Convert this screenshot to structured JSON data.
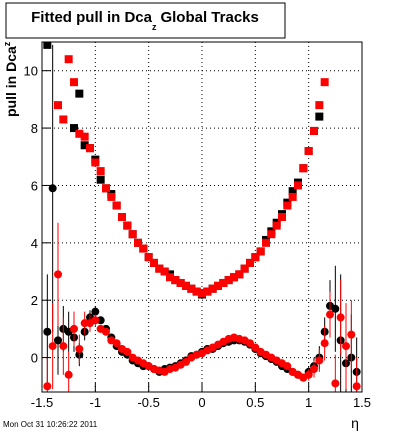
{
  "chart_data": {
    "type": "scatter",
    "title": "Fitted pull in Dca",
    "title_subscript": "z",
    "title_suffix": "Global Tracks",
    "y_label": "pull in Dca",
    "y_label_subscript": "z",
    "x_label": "η",
    "timestamp": "Mon Oct 31 10:26:22 2011",
    "xlim": [
      -1.5,
      1.5
    ],
    "ylim": [
      -1.2,
      11
    ],
    "xticks": [
      -1.5,
      -1,
      -0.5,
      0,
      0.5,
      1,
      1.5
    ],
    "yticks": [
      0,
      2,
      4,
      6,
      8,
      10
    ],
    "grid": true,
    "series": [
      {
        "color": "#000000",
        "marker": "square",
        "x": [
          -1.45,
          -1.2,
          -1.15,
          -1.1,
          -1.05,
          -1.0,
          -0.95,
          -0.9,
          -0.85,
          -0.8,
          -0.75,
          -0.7,
          -0.65,
          -0.6,
          -0.55,
          -0.5,
          -0.45,
          -0.4,
          -0.35,
          -0.3,
          -0.25,
          -0.2,
          -0.15,
          -0.1,
          -0.05,
          0,
          0.05,
          0.1,
          0.15,
          0.2,
          0.25,
          0.3,
          0.35,
          0.4,
          0.45,
          0.5,
          0.55,
          0.6,
          0.65,
          0.7,
          0.75,
          0.8,
          0.85,
          0.9,
          0.95,
          1.0,
          1.05,
          1.1
        ],
        "values": [
          10.9,
          8.0,
          9.2,
          7.4,
          7.3,
          6.9,
          6.2,
          5.9,
          5.7,
          5.3,
          4.9,
          4.6,
          4.3,
          4.0,
          3.8,
          3.5,
          3.3,
          3.1,
          3.0,
          2.9,
          2.7,
          2.6,
          2.5,
          2.4,
          2.3,
          2.2,
          2.3,
          2.4,
          2.5,
          2.6,
          2.7,
          2.8,
          2.9,
          3.1,
          3.3,
          3.5,
          3.7,
          4.1,
          4.4,
          4.7,
          5.0,
          5.4,
          5.8,
          6.1,
          6.6,
          7.2,
          7.9,
          8.4
        ]
      },
      {
        "color": "#ff0000",
        "marker": "square",
        "x": [
          -1.35,
          -1.3,
          -1.25,
          -1.2,
          -1.15,
          -1.1,
          -1.05,
          -1.0,
          -0.95,
          -0.9,
          -0.85,
          -0.8,
          -0.75,
          -0.7,
          -0.65,
          -0.6,
          -0.55,
          -0.5,
          -0.45,
          -0.4,
          -0.35,
          -0.3,
          -0.25,
          -0.2,
          -0.15,
          -0.1,
          -0.05,
          0,
          0.05,
          0.1,
          0.15,
          0.2,
          0.25,
          0.3,
          0.35,
          0.4,
          0.45,
          0.5,
          0.55,
          0.6,
          0.65,
          0.7,
          0.75,
          0.8,
          0.85,
          0.9,
          0.95,
          1.0,
          1.05,
          1.1,
          1.15
        ],
        "values": [
          8.8,
          8.3,
          10.4,
          9.6,
          7.8,
          7.7,
          7.3,
          6.8,
          6.5,
          5.9,
          5.6,
          5.3,
          4.9,
          4.6,
          4.3,
          4.0,
          3.8,
          3.5,
          3.3,
          3.1,
          3.0,
          2.8,
          2.7,
          2.6,
          2.5,
          2.4,
          2.3,
          2.25,
          2.3,
          2.4,
          2.5,
          2.6,
          2.7,
          2.8,
          2.9,
          3.1,
          3.3,
          3.5,
          3.7,
          4.0,
          4.3,
          4.6,
          4.9,
          5.3,
          5.6,
          6.0,
          6.6,
          7.2,
          7.9,
          8.8,
          9.6
        ]
      },
      {
        "color": "#000000",
        "marker": "circle",
        "x": [
          -1.45,
          -1.4,
          -1.35,
          -1.3,
          -1.25,
          -1.2,
          -1.15,
          -1.1,
          -1.05,
          -1.0,
          -0.95,
          -0.9,
          -0.85,
          -0.8,
          -0.75,
          -0.7,
          -0.65,
          -0.6,
          -0.55,
          -0.5,
          -0.45,
          -0.4,
          -0.35,
          -0.3,
          -0.25,
          -0.2,
          -0.15,
          -0.1,
          -0.05,
          0,
          0.05,
          0.1,
          0.15,
          0.2,
          0.25,
          0.3,
          0.35,
          0.4,
          0.45,
          0.5,
          0.55,
          0.6,
          0.65,
          0.7,
          0.75,
          0.8,
          0.85,
          0.9,
          0.95,
          1.0,
          1.05,
          1.1,
          1.15,
          1.2,
          1.25,
          1.3,
          1.35,
          1.4,
          1.45
        ],
        "values": [
          0.9,
          5.9,
          0.6,
          1.0,
          0.9,
          0.7,
          0.1,
          0.9,
          1.4,
          1.6,
          1.3,
          1.0,
          0.7,
          0.4,
          0.2,
          0.1,
          -0.1,
          -0.2,
          -0.3,
          -0.3,
          -0.4,
          -0.5,
          -0.4,
          -0.35,
          -0.3,
          -0.2,
          -0.1,
          0.05,
          0.1,
          0.2,
          0.3,
          0.3,
          0.4,
          0.5,
          0.55,
          0.6,
          0.6,
          0.55,
          0.45,
          0.3,
          0.15,
          0.05,
          -0.05,
          -0.15,
          -0.3,
          -0.4,
          -0.5,
          -0.6,
          -0.7,
          -0.5,
          -0.3,
          0.0,
          0.9,
          1.8,
          1.7,
          0.6,
          -0.2,
          0.0,
          -0.5
        ],
        "errors": [
          2.0,
          5.0,
          1.2,
          0.8,
          0.7,
          0.5,
          0.4,
          0.3,
          0.25,
          0.2,
          0.1,
          0.1,
          0.1,
          0.1,
          0.1,
          0.1,
          0.1,
          0.1,
          0.1,
          0.1,
          0.1,
          0.1,
          0.1,
          0.1,
          0.1,
          0.1,
          0.1,
          0.1,
          0.1,
          0.1,
          0.1,
          0.1,
          0.1,
          0.1,
          0.1,
          0.1,
          0.1,
          0.1,
          0.1,
          0.1,
          0.1,
          0.1,
          0.1,
          0.1,
          0.1,
          0.1,
          0.1,
          0.1,
          0.1,
          0.2,
          0.3,
          0.4,
          0.5,
          0.9,
          1.5,
          2.3,
          2.0,
          1.5,
          1.2
        ]
      },
      {
        "color": "#ff0000",
        "marker": "circle",
        "x": [
          -1.45,
          -1.4,
          -1.35,
          -1.3,
          -1.25,
          -1.2,
          -1.15,
          -1.1,
          -1.05,
          -1.0,
          -0.95,
          -0.9,
          -0.85,
          -0.8,
          -0.75,
          -0.7,
          -0.65,
          -0.6,
          -0.55,
          -0.5,
          -0.45,
          -0.4,
          -0.35,
          -0.3,
          -0.25,
          -0.2,
          -0.15,
          -0.1,
          -0.05,
          0,
          0.05,
          0.1,
          0.15,
          0.2,
          0.25,
          0.3,
          0.35,
          0.4,
          0.45,
          0.5,
          0.55,
          0.6,
          0.65,
          0.7,
          0.75,
          0.8,
          0.85,
          0.9,
          0.95,
          1.0,
          1.05,
          1.1,
          1.15,
          1.2,
          1.25,
          1.3,
          1.35,
          1.4,
          1.45
        ],
        "values": [
          -1.0,
          0.4,
          2.9,
          0.4,
          -0.6,
          1.0,
          0.3,
          1.2,
          1.2,
          1.3,
          1.0,
          0.9,
          0.6,
          0.5,
          0.3,
          0.2,
          0.0,
          -0.1,
          -0.2,
          -0.3,
          -0.4,
          -0.45,
          -0.5,
          -0.4,
          -0.35,
          -0.25,
          -0.15,
          0.0,
          0.1,
          0.15,
          0.25,
          0.35,
          0.45,
          0.55,
          0.65,
          0.7,
          0.65,
          0.6,
          0.5,
          0.35,
          0.2,
          0.1,
          0.0,
          -0.1,
          -0.2,
          -0.3,
          -0.5,
          -0.6,
          -0.7,
          -0.6,
          -0.4,
          -0.1,
          0.5,
          1.5,
          -0.9,
          1.4,
          0.4,
          0.8,
          -1.0
        ],
        "errors": [
          1.0,
          1.5,
          1.8,
          1.0,
          0.8,
          0.6,
          0.5,
          0.4,
          0.3,
          0.2,
          0.1,
          0.1,
          0.1,
          0.1,
          0.1,
          0.1,
          0.1,
          0.1,
          0.1,
          0.1,
          0.1,
          0.1,
          0.1,
          0.1,
          0.1,
          0.1,
          0.1,
          0.1,
          0.1,
          0.1,
          0.1,
          0.1,
          0.1,
          0.1,
          0.1,
          0.1,
          0.1,
          0.1,
          0.1,
          0.1,
          0.1,
          0.1,
          0.1,
          0.1,
          0.1,
          0.1,
          0.1,
          0.1,
          0.1,
          0.2,
          0.3,
          0.4,
          0.6,
          0.8,
          1.0,
          1.3,
          1.5,
          1.2,
          1.0
        ]
      }
    ]
  }
}
